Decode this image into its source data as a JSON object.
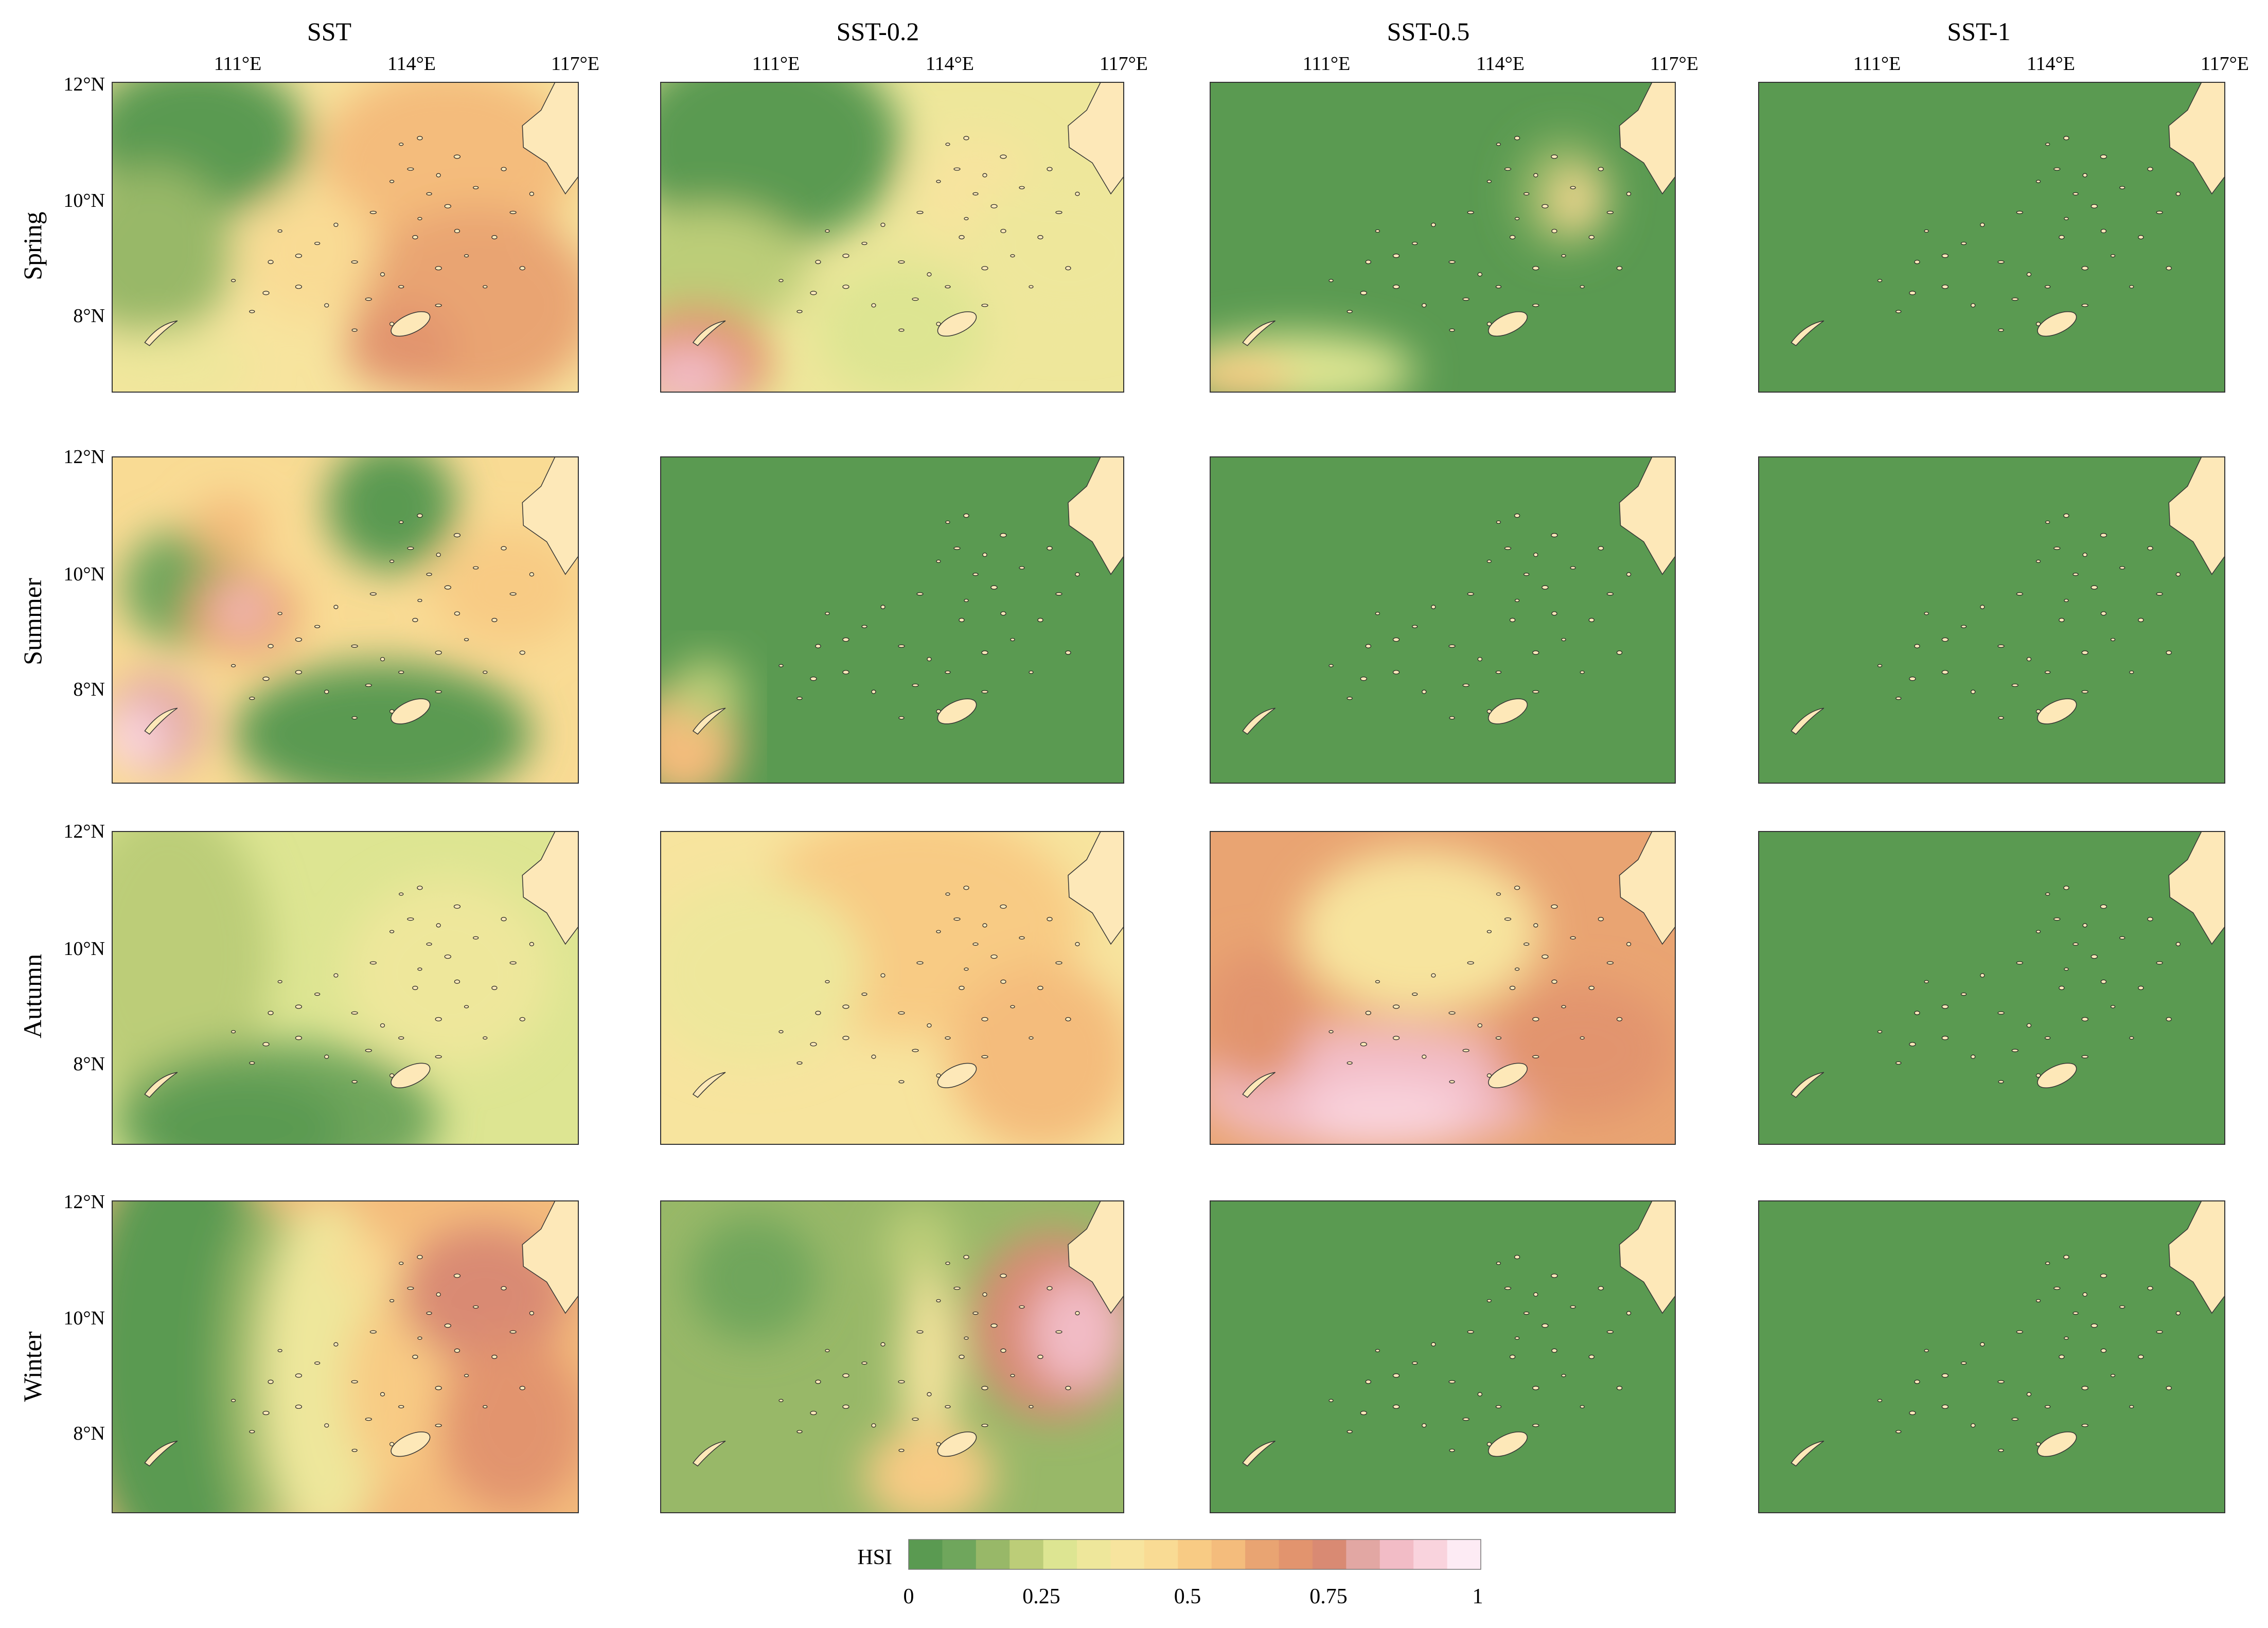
{
  "figure": {
    "columns": [
      "SST",
      "SST-0.2",
      "SST-0.5",
      "SST-1"
    ],
    "rows": [
      "Spring",
      "Summer",
      "Autumn",
      "Winter"
    ],
    "lon_ticks": [
      "111°E",
      "114°E",
      "117°E"
    ],
    "lat_ticks": [
      "12°N",
      "10°N",
      "8°N"
    ],
    "colorbar": {
      "title": "HSI",
      "tick_labels": [
        "0",
        "0.25",
        "0.5",
        "0.75",
        "1"
      ],
      "colors": [
        "#5a9a51",
        "#6fa65c",
        "#98b868",
        "#bccd78",
        "#dde592",
        "#eee79b",
        "#f7e49e",
        "#f9db94",
        "#f8cb84",
        "#f4bc7c",
        "#e9a472",
        "#e2946e",
        "#d98a73",
        "#e2a7a3",
        "#f2bcc6",
        "#f9d3dd",
        "#fdebf4"
      ]
    },
    "land_color": "#fde8b8",
    "uniform_green": "#5a9a51"
  }
}
